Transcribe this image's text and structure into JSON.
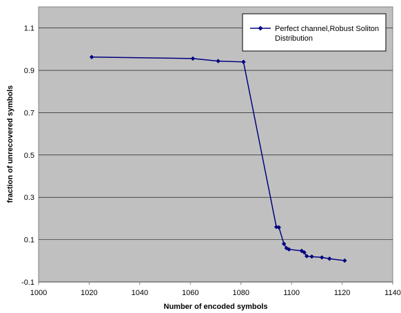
{
  "chart_data": {
    "type": "line",
    "xlabel": "Number of encoded symbols",
    "ylabel": "fraction of unrecovered symbols",
    "xlim": [
      1000,
      1140
    ],
    "ylim": [
      -0.1,
      1.2
    ],
    "xticks": [
      1000,
      1020,
      1040,
      1060,
      1080,
      1100,
      1120,
      1140
    ],
    "xtick_labels": [
      "1000",
      "1020",
      "1040",
      "1060",
      "1080",
      "1100",
      "1120",
      "1140"
    ],
    "yticks": [
      -0.1,
      0.1,
      0.3,
      0.5,
      0.7,
      0.9,
      1.1
    ],
    "ytick_labels": [
      "-0.1",
      "0.1",
      "0.3",
      "0.5",
      "0.7",
      "0.9",
      "1.1"
    ],
    "grid": "horizontal",
    "plot_background": "#c0c0c0",
    "legend": {
      "placement": "top-right",
      "lines": [
        "Perfect channel,Robust Soliton",
        "Distribution"
      ]
    },
    "series": [
      {
        "name": "Perfect channel,Robust Soliton Distribution",
        "color": "#000080",
        "marker": "diamond",
        "x": [
          1021,
          1061,
          1071,
          1081,
          1094,
          1095,
          1097,
          1098,
          1099,
          1104,
          1105,
          1106,
          1108,
          1112,
          1115,
          1121
        ],
        "y": [
          0.963,
          0.956,
          0.944,
          0.94,
          0.16,
          0.158,
          0.08,
          0.06,
          0.054,
          0.047,
          0.04,
          0.022,
          0.02,
          0.016,
          0.01,
          0.001
        ]
      }
    ]
  }
}
